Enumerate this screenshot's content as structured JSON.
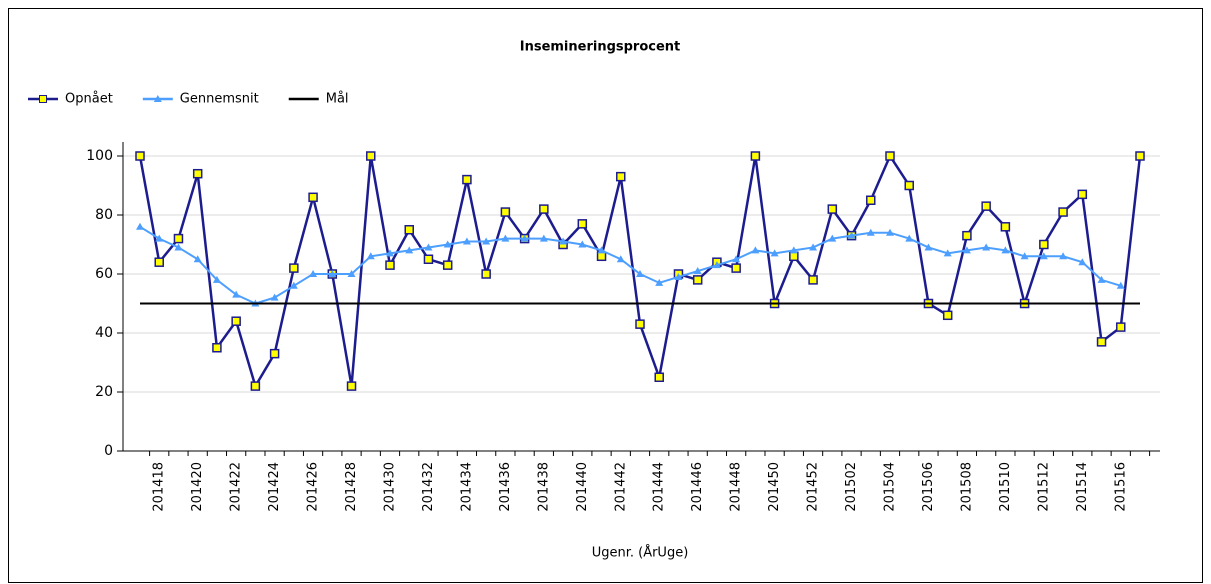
{
  "chart_data": {
    "type": "line",
    "title": "Insemineringsprocent",
    "xlabel": "Ugenr. (ÅrUge)",
    "categories": [
      null,
      "201418",
      null,
      "201420",
      null,
      "201422",
      null,
      "201424",
      null,
      "201426",
      null,
      "201428",
      null,
      "201430",
      null,
      "201432",
      null,
      "201434",
      null,
      "201436",
      null,
      "201438",
      null,
      "201440",
      null,
      "201442",
      null,
      "201444",
      null,
      "201446",
      null,
      "201448",
      null,
      "201450",
      null,
      "201452",
      null,
      "201502",
      null,
      "201504",
      null,
      "201506",
      null,
      "201508",
      null,
      "201510",
      null,
      "201512",
      null,
      "201514",
      null,
      "201516",
      null
    ],
    "series": [
      {
        "name": "Opnået",
        "color": "#1c1c8f",
        "marker": "square",
        "marker_color": "#ffff00",
        "values": [
          100,
          64,
          72,
          94,
          35,
          44,
          22,
          33,
          62,
          86,
          60,
          22,
          100,
          63,
          75,
          65,
          63,
          92,
          60,
          81,
          72,
          82,
          70,
          77,
          66,
          93,
          43,
          25,
          60,
          58,
          64,
          62,
          100,
          50,
          66,
          58,
          82,
          73,
          85,
          100,
          90,
          50,
          46,
          73,
          83,
          76,
          50,
          70,
          81,
          87,
          37,
          42,
          100
        ]
      },
      {
        "name": "Gennemsnit",
        "color": "#4d9fff",
        "marker": "triangle",
        "values": [
          76,
          72,
          69,
          65,
          58,
          53,
          50,
          52,
          56,
          60,
          60,
          60,
          66,
          67,
          68,
          69,
          70,
          71,
          71,
          72,
          72,
          72,
          71,
          70,
          68,
          65,
          60,
          57,
          59,
          61,
          63,
          65,
          68,
          67,
          68,
          69,
          72,
          73,
          74,
          74,
          72,
          69,
          67,
          68,
          69,
          68,
          66,
          66,
          66,
          64,
          58,
          56,
          null
        ]
      },
      {
        "name": "Mål",
        "color": "#000000",
        "marker": "none",
        "values": [
          50,
          50,
          50,
          50,
          50,
          50,
          50,
          50,
          50,
          50,
          50,
          50,
          50,
          50,
          50,
          50,
          50,
          50,
          50,
          50,
          50,
          50,
          50,
          50,
          50,
          50,
          50,
          50,
          50,
          50,
          50,
          50,
          50,
          50,
          50,
          50,
          50,
          50,
          50,
          50,
          50,
          50,
          50,
          50,
          50,
          50,
          50,
          50,
          50,
          50,
          50,
          50,
          50
        ]
      }
    ],
    "ylim": [
      0,
      100
    ],
    "yticks": [
      0,
      20,
      40,
      60,
      80,
      100
    ],
    "grid": true,
    "legend": "top-left"
  }
}
